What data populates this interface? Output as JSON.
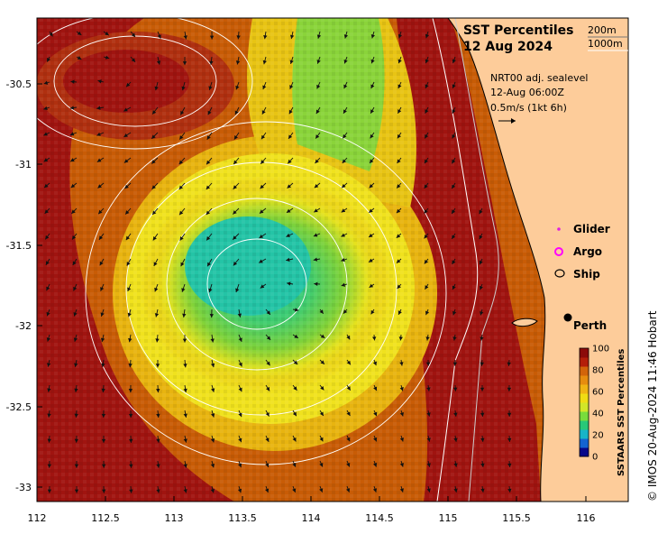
{
  "map": {
    "title_line1": "SST Percentiles",
    "title_line2": "12 Aug 2024",
    "contour_legend": [
      "200m",
      "1000m"
    ],
    "current_legend": [
      "NRT00 adj. sealevel",
      "12-Aug 06:00Z",
      "0.5m/s (1kt 6h)"
    ],
    "symbols": [
      {
        "label": "Glider",
        "color": "#e020e0"
      },
      {
        "label": "Argo",
        "color": "#ff00ff"
      },
      {
        "label": "Ship",
        "color": "#000000"
      }
    ],
    "city": "Perth",
    "colorbar": {
      "label": "SSTAARS SST Percentiles",
      "ticks": [
        "100",
        "80",
        "60",
        "40",
        "20",
        "0"
      ],
      "colors": [
        "#08088a",
        "#1464d2",
        "#17b4c8",
        "#28c878",
        "#78dc3c",
        "#d2e628",
        "#f0dc14",
        "#f0b414",
        "#e68c0f",
        "#d2640a",
        "#b41e0a",
        "#8c0a0a"
      ]
    },
    "credit": "© IMOS 20-Aug-2024 11:46 Hobart",
    "axes": {
      "x_ticks": [
        "112",
        "112.5",
        "113",
        "113.5",
        "114",
        "114.5",
        "115",
        "115.5",
        "116"
      ],
      "y_ticks": [
        "-30.5",
        "-31",
        "-31.5",
        "-32",
        "-32.5",
        "-33"
      ]
    },
    "colors": {
      "land": "#fdcc9a",
      "hot": "#a01410",
      "warm": "#c85c06",
      "mid": "#e8b410",
      "yellow": "#f0e61e",
      "green": "#6ed23c",
      "cool": "#22c8a0"
    }
  }
}
